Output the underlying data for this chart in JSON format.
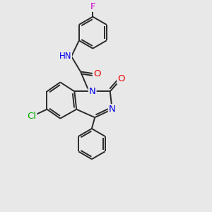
{
  "background_color": "#e8e8e8",
  "bond_color": "#2a2a2a",
  "atom_colors": {
    "N": "#0000ee",
    "O": "#ee0000",
    "Cl": "#00aa00",
    "F": "#cc00cc",
    "H": "#777777",
    "C": "#2a2a2a"
  },
  "font_size": 8.5,
  "lw": 1.4,
  "figsize": [
    3.0,
    3.0
  ],
  "dpi": 100
}
